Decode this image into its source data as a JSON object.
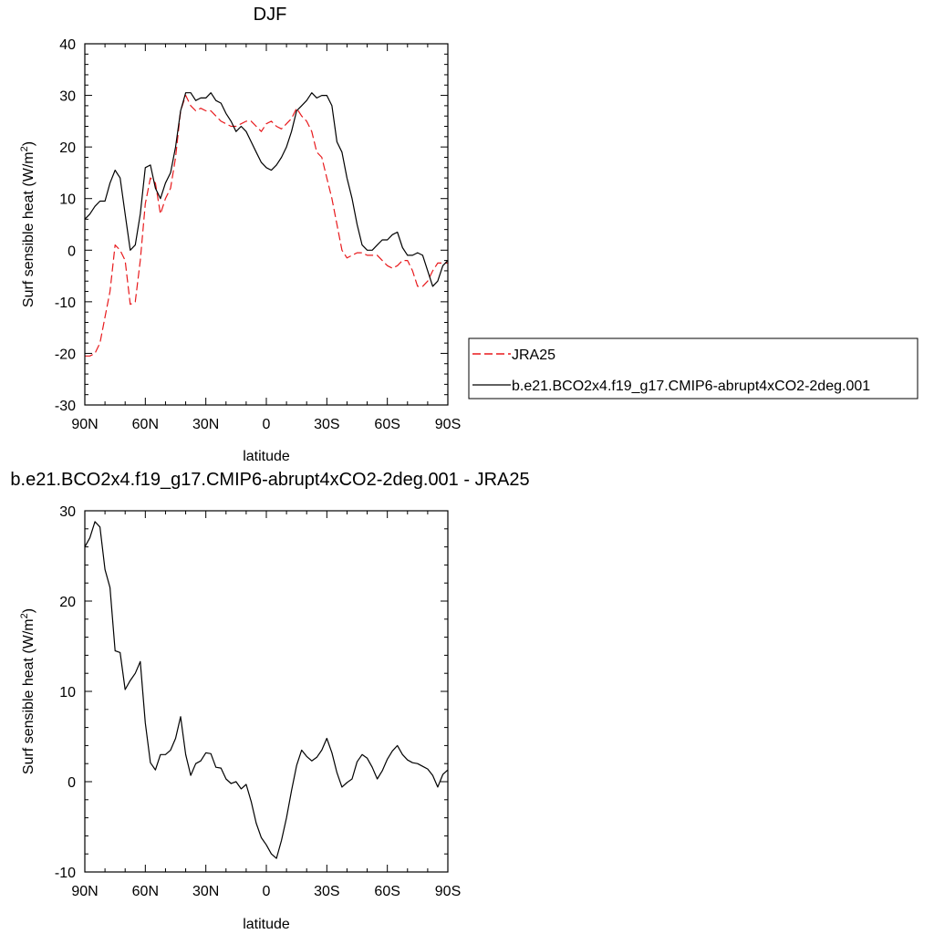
{
  "chart_data": [
    {
      "type": "line",
      "title": "DJF",
      "xlabel": "latitude",
      "ylabel_main": "Surf sensible heat (W/m",
      "ylabel_sup": "2",
      "ylabel_close": ")",
      "xlim": [
        90,
        -90
      ],
      "ylim": [
        -30,
        40
      ],
      "xticks": [
        90,
        60,
        30,
        0,
        -30,
        -60,
        -90
      ],
      "xtick_labels": [
        "90N",
        "60N",
        "30N",
        "0",
        "30S",
        "60S",
        "90S"
      ],
      "yticks": [
        -30,
        -20,
        -10,
        0,
        10,
        20,
        30,
        40
      ],
      "ytick_labels": [
        "-30",
        "-20",
        "-10",
        "0",
        "10",
        "20",
        "30",
        "40"
      ],
      "legend_position": "right",
      "series": [
        {
          "name": "JRA25",
          "color": "#e8191c",
          "dash": true,
          "x": [
            90,
            87.5,
            85,
            82.5,
            80,
            77.5,
            75,
            72.5,
            70,
            67.5,
            65,
            62.5,
            60,
            57.5,
            55,
            52.5,
            50,
            47.5,
            45,
            42.5,
            40,
            37.5,
            35,
            32.5,
            30,
            27.5,
            25,
            22.5,
            20,
            17.5,
            15,
            12.5,
            10,
            7.5,
            5,
            2.5,
            0,
            -2.5,
            -5,
            -7.5,
            -10,
            -12.5,
            -15,
            -17.5,
            -20,
            -22.5,
            -25,
            -27.5,
            -30,
            -32.5,
            -35,
            -37.5,
            -40,
            -42.5,
            -45,
            -47.5,
            -50,
            -52.5,
            -55,
            -57.5,
            -60,
            -62.5,
            -65,
            -67.5,
            -70,
            -72.5,
            -75,
            -77.5,
            -80,
            -82.5,
            -85,
            -87.5,
            -90
          ],
          "y": [
            -20.5,
            -20.5,
            -20,
            -18,
            -13,
            -8,
            1,
            0,
            -2,
            -10.5,
            -10,
            -2,
            9,
            14,
            13,
            7,
            10,
            12,
            18,
            27,
            30,
            28,
            27,
            27.5,
            27,
            27,
            26,
            25,
            24.5,
            24,
            24,
            24.5,
            25,
            25,
            24,
            23,
            24.5,
            25,
            24,
            23.5,
            24.5,
            25.5,
            27.5,
            26,
            25,
            23,
            19,
            18,
            14,
            10,
            5,
            0,
            -1.5,
            -1,
            -0.5,
            -0.5,
            -1,
            -1,
            -1,
            -2,
            -3,
            -3.5,
            -3,
            -2,
            -2,
            -4,
            -7,
            -7,
            -6,
            -4,
            -2.5,
            -2.5,
            -2.5
          ]
        },
        {
          "name": "b.e21.BCO2x4.f19_g17.CMIP6-abrupt4xCO2-2deg.001",
          "color": "#000000",
          "dash": false,
          "x": [
            90,
            87.5,
            85,
            82.5,
            80,
            77.5,
            75,
            72.5,
            70,
            67.5,
            65,
            62.5,
            60,
            57.5,
            55,
            52.5,
            50,
            47.5,
            45,
            42.5,
            40,
            37.5,
            35,
            32.5,
            30,
            27.5,
            25,
            22.5,
            20,
            17.5,
            15,
            12.5,
            10,
            7.5,
            5,
            2.5,
            0,
            -2.5,
            -5,
            -7.5,
            -10,
            -12.5,
            -15,
            -17.5,
            -20,
            -22.5,
            -25,
            -27.5,
            -30,
            -32.5,
            -35,
            -37.5,
            -40,
            -42.5,
            -45,
            -47.5,
            -50,
            -52.5,
            -55,
            -57.5,
            -60,
            -62.5,
            -65,
            -67.5,
            -70,
            -72.5,
            -75,
            -77.5,
            -80,
            -82.5,
            -85,
            -87.5,
            -90
          ],
          "y": [
            6,
            7,
            8.5,
            9.5,
            9.5,
            13,
            15.5,
            14,
            7,
            0,
            1,
            7,
            16,
            16.5,
            12,
            10,
            13,
            15,
            20,
            27,
            30.5,
            30.5,
            29,
            29.5,
            29.5,
            30.5,
            29,
            28.5,
            26.5,
            25,
            23,
            24,
            23,
            21,
            19,
            17,
            16,
            15.5,
            16.5,
            18,
            20,
            23,
            27,
            28,
            29,
            30.5,
            29.5,
            30,
            30,
            28,
            21,
            19,
            14,
            10,
            5,
            1,
            0,
            0,
            1,
            2,
            2,
            3,
            3.5,
            0.5,
            -1,
            -1,
            -0.5,
            -1,
            -4,
            -7,
            -6,
            -3,
            -2
          ]
        }
      ]
    },
    {
      "type": "line",
      "title": "b.e21.BCO2x4.f19_g17.CMIP6-abrupt4xCO2-2deg.001 - JRA25",
      "xlabel": "latitude",
      "ylabel_main": "Surf sensible heat (W/m",
      "ylabel_sup": "2",
      "ylabel_close": ")",
      "xlim": [
        90,
        -90
      ],
      "ylim": [
        -10,
        30
      ],
      "xticks": [
        90,
        60,
        30,
        0,
        -30,
        -60,
        -90
      ],
      "xtick_labels": [
        "90N",
        "60N",
        "30N",
        "0",
        "30S",
        "60S",
        "90S"
      ],
      "yticks": [
        -10,
        0,
        10,
        20,
        30
      ],
      "ytick_labels": [
        "-10",
        "0",
        "10",
        "20",
        "30"
      ],
      "series": [
        {
          "color": "#000000",
          "dash": false,
          "x": [
            90,
            87.5,
            85,
            82.5,
            80,
            77.5,
            75,
            72.5,
            70,
            67.5,
            65,
            62.5,
            60,
            57.5,
            55,
            52.5,
            50,
            47.5,
            45,
            42.5,
            40,
            37.5,
            35,
            32.5,
            30,
            27.5,
            25,
            22.5,
            20,
            17.5,
            15,
            12.5,
            10,
            7.5,
            5,
            2.5,
            0,
            -2.5,
            -5,
            -7.5,
            -10,
            -12.5,
            -15,
            -17.5,
            -20,
            -22.5,
            -25,
            -27.5,
            -30,
            -32.5,
            -35,
            -37.5,
            -40,
            -42.5,
            -45,
            -47.5,
            -50,
            -52.5,
            -55,
            -57.5,
            -60,
            -62.5,
            -65,
            -67.5,
            -70,
            -72.5,
            -75,
            -77.5,
            -80,
            -82.5,
            -85,
            -87.5,
            -90
          ],
          "y": [
            26,
            27,
            28.8,
            28.2,
            23.5,
            21.5,
            14.5,
            14.3,
            10.2,
            11.2,
            12,
            13.3,
            6.5,
            2.1,
            1.3,
            3,
            3,
            3.5,
            4.8,
            7.2,
            3,
            0.7,
            2,
            2.3,
            3.2,
            3.1,
            1.6,
            1.5,
            0.3,
            -0.2,
            0,
            -0.8,
            -0.3,
            -2.2,
            -4.6,
            -6.2,
            -7,
            -8,
            -8.5,
            -6.5,
            -4,
            -1,
            1.8,
            3.5,
            2.8,
            2.3,
            2.7,
            3.5,
            4.8,
            3.2,
            1,
            -0.6,
            -0.1,
            0.3,
            2.2,
            3,
            2.6,
            1.6,
            0.3,
            1.2,
            2.5,
            3.4,
            4,
            3,
            2.4,
            2.1,
            2,
            1.7,
            1.4,
            0.7,
            -0.6,
            0.8,
            1.3
          ]
        }
      ]
    }
  ]
}
